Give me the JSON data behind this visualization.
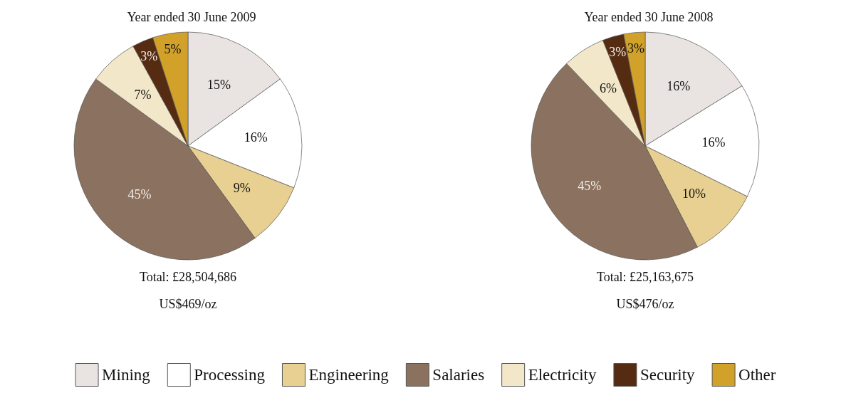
{
  "chart_data": {
    "type": "pie",
    "categories": [
      "Mining",
      "Processing",
      "Engineering",
      "Salaries",
      "Electricity",
      "Security",
      "Other"
    ],
    "series": [
      {
        "name": "Year ended 30 June 2009",
        "values": [
          15,
          16,
          9,
          45,
          7,
          3,
          5
        ],
        "value_labels": [
          "15%",
          "16%",
          "9%",
          "45%",
          "7%",
          "3%",
          "5%"
        ],
        "colors": [
          "#e9e4e1",
          "#ffffff",
          "#e8d092",
          "#8b7260",
          "#f3e7c9",
          "#552b12",
          "#d1a12a"
        ]
      },
      {
        "name": "Year ended 30 June 2008",
        "values": [
          16,
          16,
          10,
          45,
          6,
          3,
          3
        ],
        "value_labels": [
          "16%",
          "16%",
          "10%",
          "45%",
          "6%",
          "3%",
          "3%"
        ],
        "colors": [
          "#e9e4e1",
          "#ffffff",
          "#e8d092",
          "#8b7260",
          "#f3e7c9",
          "#552b12",
          "#d1a12a"
        ]
      }
    ],
    "annotations": [
      "Total: £28,504,686",
      "Total: £25,163,675",
      "US$469/oz",
      "US$476/oz"
    ],
    "legend": "bottom"
  }
}
